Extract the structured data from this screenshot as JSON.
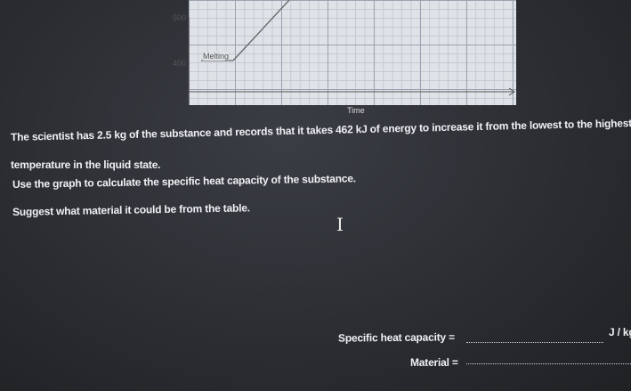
{
  "graph": {
    "y_labels": [
      500,
      400
    ],
    "annotation": "Melting",
    "x_label": "Time"
  },
  "question": {
    "lines": [
      "The scientist has 2.5 kg of the substance and records that it takes 462 kJ of energy to increase it from the lowest to the highest",
      "temperature in the liquid state.",
      "Use the graph to calculate the specific heat capacity of the substance.",
      "Suggest what material it could be from the table."
    ]
  },
  "answers": {
    "heat_capacity_label": "Specific heat capacity =",
    "heat_capacity_unit": "J / kg",
    "material_label": "Material ="
  }
}
